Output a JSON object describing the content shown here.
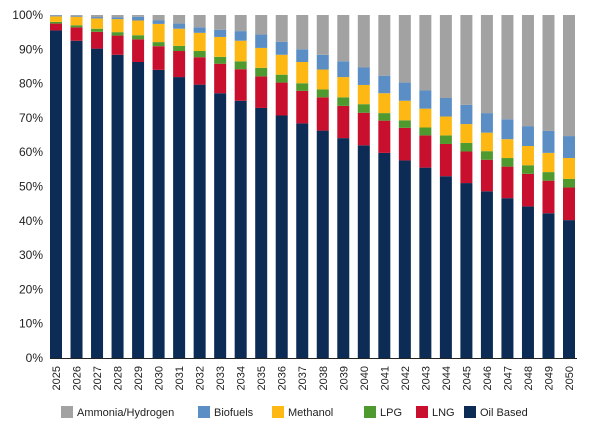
{
  "chart_data": {
    "type": "bar",
    "stacked": true,
    "title": "",
    "xlabel": "",
    "ylabel": "",
    "ylim": [
      0,
      100
    ],
    "y_ticks": [
      "0%",
      "10%",
      "20%",
      "30%",
      "40%",
      "50%",
      "60%",
      "70%",
      "80%",
      "90%",
      "100%"
    ],
    "grid": false,
    "legend_position": "bottom",
    "categories": [
      "2025",
      "2026",
      "2027",
      "2028",
      "2029",
      "2030",
      "2031",
      "2032",
      "2033",
      "2034",
      "2035",
      "2036",
      "2037",
      "2038",
      "2039",
      "2040",
      "2041",
      "2042",
      "2043",
      "2044",
      "2045",
      "2046",
      "2047",
      "2048",
      "2049",
      "2050"
    ],
    "series": [
      {
        "name": "Oil Based",
        "color": "#0c2b55",
        "values": [
          95.5,
          92.5,
          90.2,
          88.4,
          86.3,
          84.0,
          81.9,
          79.7,
          77.2,
          75.0,
          72.9,
          70.7,
          68.4,
          66.3,
          64.1,
          62.0,
          59.8,
          57.6,
          55.5,
          53.0,
          51.0,
          48.6,
          46.6,
          44.2,
          42.2,
          40.2
        ]
      },
      {
        "name": "LNG",
        "color": "#c8102e",
        "values": [
          2.0,
          3.9,
          4.9,
          5.6,
          6.6,
          6.9,
          7.6,
          8.0,
          8.6,
          9.2,
          9.2,
          9.6,
          9.5,
          9.7,
          9.4,
          9.5,
          9.4,
          9.5,
          9.4,
          9.4,
          9.2,
          9.2,
          9.2,
          9.5,
          9.5,
          9.5
        ]
      },
      {
        "name": "LPG",
        "color": "#4e9a2e",
        "values": [
          0.5,
          0.6,
          0.9,
          1.0,
          1.2,
          1.2,
          1.5,
          1.8,
          2.0,
          2.3,
          2.5,
          2.3,
          2.2,
          2.3,
          2.5,
          2.5,
          2.2,
          2.2,
          2.3,
          2.5,
          2.5,
          2.5,
          2.5,
          2.5,
          2.5,
          2.5
        ]
      },
      {
        "name": "Methanol",
        "color": "#fdb813",
        "values": [
          1.6,
          2.5,
          3.0,
          3.8,
          4.3,
          5.3,
          5.0,
          5.3,
          5.8,
          6.0,
          5.8,
          5.8,
          6.2,
          5.8,
          5.9,
          5.6,
          5.8,
          5.7,
          5.5,
          5.5,
          5.5,
          5.4,
          5.5,
          5.6,
          5.6,
          6.1
        ]
      },
      {
        "name": "Biofuels",
        "color": "#5b8ec5",
        "values": [
          0.3,
          0.3,
          0.4,
          0.5,
          1.1,
          1.0,
          1.5,
          1.6,
          2.1,
          2.8,
          3.9,
          3.8,
          3.7,
          4.3,
          4.6,
          5.1,
          5.1,
          5.3,
          5.3,
          5.4,
          5.6,
          5.7,
          5.8,
          5.8,
          6.4,
          6.4
        ]
      },
      {
        "name": "Ammonia/Hydrogen",
        "color": "#a2a2a2",
        "values": [
          0.1,
          0.2,
          0.6,
          0.7,
          0.5,
          1.6,
          2.5,
          3.6,
          4.3,
          4.7,
          5.7,
          7.8,
          10.0,
          11.6,
          13.5,
          15.3,
          17.7,
          19.7,
          22.0,
          24.2,
          26.2,
          28.6,
          30.4,
          32.4,
          33.8,
          35.3
        ]
      }
    ],
    "legend_order": [
      "Ammonia/Hydrogen",
      "Biofuels",
      "Methanol",
      "LPG",
      "LNG",
      "Oil Based"
    ]
  }
}
